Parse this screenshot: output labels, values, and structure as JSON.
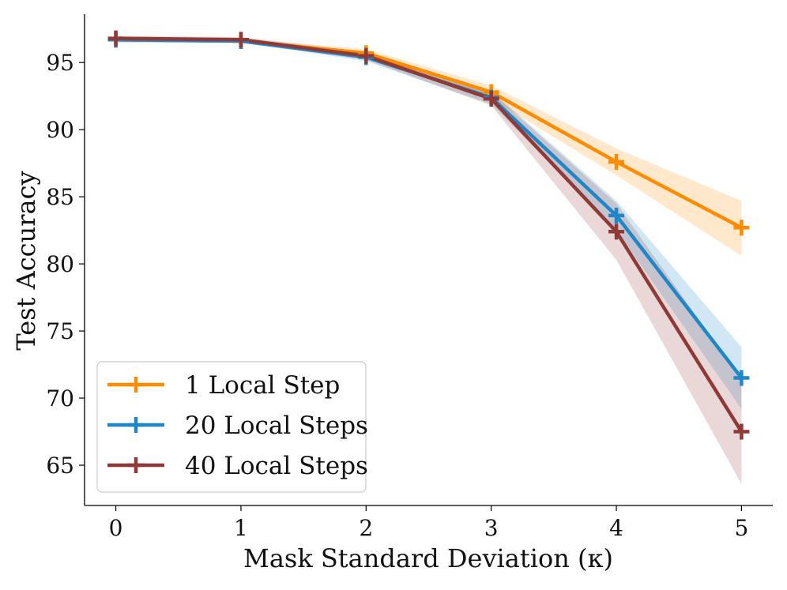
{
  "chart_data": {
    "type": "line",
    "xlabel": "Mask Standard Deviation (κ)",
    "ylabel": "Test Accuracy",
    "x": [
      0,
      1,
      2,
      3,
      4,
      5
    ],
    "xticks": [
      "0",
      "1",
      "2",
      "3",
      "4",
      "5"
    ],
    "yticks": [
      "65",
      "70",
      "75",
      "80",
      "85",
      "90",
      "95"
    ],
    "xlim": [
      -0.25,
      5.25
    ],
    "ylim": [
      62.0,
      98.6
    ],
    "legend_position": "lower-left",
    "grid": false,
    "series": [
      {
        "name": "1 Local Step",
        "color": "#ff8c00",
        "values": [
          96.7,
          96.6,
          95.7,
          92.8,
          87.6,
          82.7
        ],
        "lower": [
          96.5,
          96.5,
          95.4,
          92.3,
          86.6,
          80.6
        ],
        "upper": [
          96.9,
          96.8,
          96.0,
          93.3,
          88.6,
          84.7
        ]
      },
      {
        "name": "20 Local Steps",
        "color": "#1f86c8",
        "values": [
          96.7,
          96.6,
          95.4,
          92.4,
          83.6,
          71.5
        ],
        "lower": [
          96.5,
          96.5,
          95.1,
          91.9,
          82.5,
          69.2
        ],
        "upper": [
          96.9,
          96.8,
          95.7,
          92.9,
          84.7,
          73.8
        ]
      },
      {
        "name": "40 Local Steps",
        "color": "#8f3a36",
        "values": [
          96.8,
          96.7,
          95.5,
          92.3,
          82.4,
          67.5
        ],
        "lower": [
          96.6,
          96.5,
          95.2,
          91.8,
          80.3,
          63.6
        ],
        "upper": [
          97.0,
          96.9,
          95.8,
          92.8,
          84.5,
          71.4
        ]
      }
    ]
  }
}
